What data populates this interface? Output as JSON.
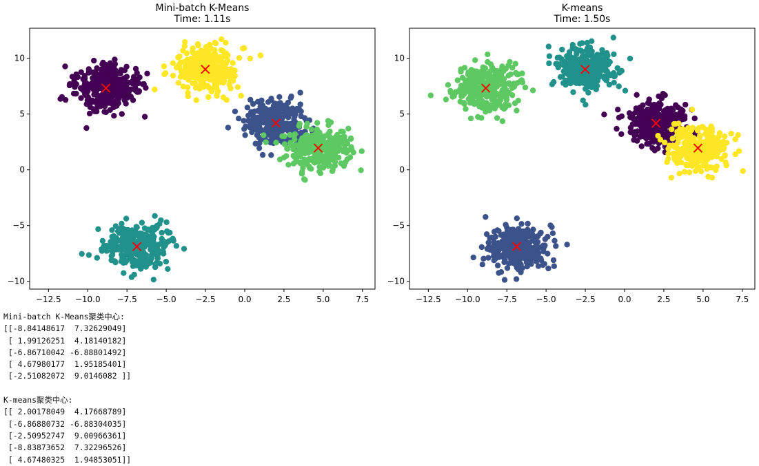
{
  "chart_data": [
    {
      "type": "scatter",
      "title": "Mini-batch K-Means",
      "subtitle": "Time: 1.11s",
      "xlim": [
        -13.7,
        8.3
      ],
      "ylim": [
        -10.7,
        12.7
      ],
      "xticks": [
        -12.5,
        -10.0,
        -7.5,
        -5.0,
        -2.5,
        0.0,
        2.5,
        5.0,
        7.5
      ],
      "xtick_labels": [
        "−12.5",
        "−10.0",
        "−7.5",
        "−5.0",
        "−2.5",
        "0.0",
        "2.5",
        "5.0",
        "7.5"
      ],
      "yticks": [
        -10,
        -5,
        0,
        5,
        10
      ],
      "ytick_labels": [
        "−10",
        "−5",
        "0",
        "5",
        "10"
      ],
      "grid": false,
      "clusters": [
        {
          "color": "#440154",
          "center": [
            -8.84148617,
            7.32629049
          ]
        },
        {
          "color": "#3b528b",
          "center": [
            1.99126251,
            4.18140182
          ]
        },
        {
          "color": "#21918c",
          "center": [
            -6.86710042,
            -6.88801492
          ]
        },
        {
          "color": "#5ec962",
          "center": [
            4.67980177,
            1.95185401
          ]
        },
        {
          "color": "#fde725",
          "center": [
            -2.51082072,
            9.0146082
          ]
        }
      ],
      "points_per_cluster": 300,
      "point_spread": 1.0,
      "center_marker": "x",
      "center_color": "#ff0000"
    },
    {
      "type": "scatter",
      "title": "K-means",
      "subtitle": "Time: 1.50s",
      "xlim": [
        -13.7,
        8.3
      ],
      "ylim": [
        -10.7,
        12.7
      ],
      "xticks": [
        -12.5,
        -10.0,
        -7.5,
        -5.0,
        -2.5,
        0.0,
        2.5,
        5.0,
        7.5
      ],
      "xtick_labels": [
        "−12.5",
        "−10.0",
        "−7.5",
        "−5.0",
        "−2.5",
        "0.0",
        "2.5",
        "5.0",
        "7.5"
      ],
      "yticks": [
        -10,
        -5,
        0,
        5,
        10
      ],
      "ytick_labels": [
        "−10",
        "−5",
        "0",
        "5",
        "10"
      ],
      "grid": false,
      "clusters": [
        {
          "color": "#440154",
          "center": [
            2.00178049,
            4.17668789
          ]
        },
        {
          "color": "#3b528b",
          "center": [
            -6.86880732,
            -6.88304035
          ]
        },
        {
          "color": "#21918c",
          "center": [
            -2.50952747,
            9.00966361
          ]
        },
        {
          "color": "#5ec962",
          "center": [
            -8.83873652,
            7.32296526
          ]
        },
        {
          "color": "#fde725",
          "center": [
            4.67480325,
            1.94853051
          ]
        }
      ],
      "points_per_cluster": 300,
      "point_spread": 1.0,
      "center_marker": "x",
      "center_color": "#ff0000"
    }
  ],
  "console": {
    "lines": [
      "Mini-batch K-Means聚类中心:",
      "[[-8.84148617  7.32629049]",
      " [ 1.99126251  4.18140182]",
      " [-6.86710042 -6.88801492]",
      " [ 4.67980177  1.95185401]",
      " [-2.51082072  9.0146082 ]]",
      "",
      "K-means聚类中心:",
      "[[ 2.00178049  4.17668789]",
      " [-6.86880732 -6.88304035]",
      " [-2.50952747  9.00966361]",
      " [-8.83873652  7.32296526]",
      " [ 4.67480325  1.94853051]]"
    ]
  }
}
